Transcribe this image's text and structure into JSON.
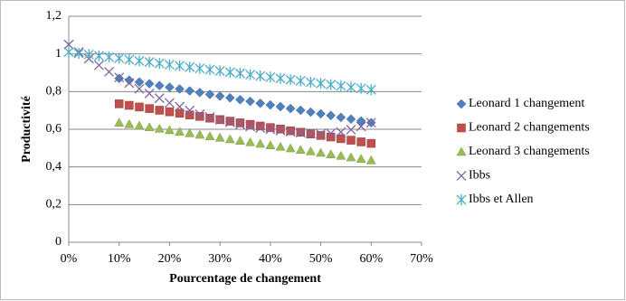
{
  "chart_data": {
    "type": "scatter",
    "y_label": "Productivité",
    "x_label": "Pourcentage de changement",
    "x": [
      0,
      0.02,
      0.04,
      0.06,
      0.08,
      0.1,
      0.12,
      0.14,
      0.16,
      0.18,
      0.2,
      0.22,
      0.24,
      0.26,
      0.28,
      0.3,
      0.32,
      0.34,
      0.36,
      0.38,
      0.4,
      0.42,
      0.44,
      0.46,
      0.48,
      0.5,
      0.52,
      0.54,
      0.56,
      0.58,
      0.6
    ],
    "xlim": [
      0,
      0.7
    ],
    "xticks": [
      {
        "value": 0,
        "label": "0%"
      },
      {
        "value": 0.1,
        "label": "10%"
      },
      {
        "value": 0.2,
        "label": "20%"
      },
      {
        "value": 0.3,
        "label": "30%"
      },
      {
        "value": 0.4,
        "label": "40%"
      },
      {
        "value": 0.5,
        "label": "50%"
      },
      {
        "value": 0.6,
        "label": "60%"
      },
      {
        "value": 0.7,
        "label": "70%"
      }
    ],
    "ylim": [
      0,
      1.2
    ],
    "yticks": [
      0,
      {
        "value": 0.2,
        "label": "0,2"
      },
      {
        "value": 0.4,
        "label": "0,4"
      },
      {
        "value": 0.6,
        "label": "0,6"
      },
      {
        "value": 0.8,
        "label": "0,8"
      },
      1,
      {
        "value": 1.2,
        "label": "1,2"
      }
    ],
    "grid": true,
    "legend": "right",
    "series": [
      {
        "name": "Leonard 1 changement",
        "color": "#4f81bd",
        "marker": "diamond",
        "values": [
          null,
          null,
          null,
          null,
          null,
          0.87,
          0.861,
          0.851,
          0.842,
          0.832,
          0.823,
          0.814,
          0.804,
          0.795,
          0.785,
          0.776,
          0.767,
          0.757,
          0.748,
          0.738,
          0.729,
          0.72,
          0.71,
          0.701,
          0.691,
          0.682,
          0.673,
          0.663,
          0.654,
          0.644,
          0.635
        ]
      },
      {
        "name": "Leonard 2 changements",
        "color": "#c0504d",
        "marker": "square",
        "values": [
          null,
          null,
          null,
          null,
          null,
          0.735,
          0.727,
          0.718,
          0.71,
          0.701,
          0.693,
          0.685,
          0.676,
          0.668,
          0.659,
          0.651,
          0.643,
          0.634,
          0.626,
          0.617,
          0.609,
          0.601,
          0.592,
          0.584,
          0.575,
          0.567,
          0.559,
          0.55,
          0.542,
          0.533,
          0.525
        ]
      },
      {
        "name": "Leonard 3 changements",
        "color": "#9bbb59",
        "marker": "triangle",
        "values": [
          null,
          null,
          null,
          null,
          null,
          0.635,
          0.627,
          0.619,
          0.611,
          0.603,
          0.595,
          0.587,
          0.579,
          0.571,
          0.563,
          0.555,
          0.547,
          0.539,
          0.531,
          0.523,
          0.515,
          0.507,
          0.499,
          0.491,
          0.483,
          0.475,
          0.467,
          0.459,
          0.451,
          0.443,
          0.435
        ]
      },
      {
        "name": "Ibbs",
        "color": "#8064a2",
        "marker": "x",
        "values": [
          1.05,
          1.01,
          0.975,
          0.94,
          0.905,
          0.875,
          0.845,
          0.815,
          0.79,
          0.765,
          0.74,
          0.72,
          0.7,
          0.68,
          0.665,
          0.65,
          0.637,
          0.625,
          0.615,
          0.607,
          0.6,
          0.593,
          0.587,
          0.582,
          0.578,
          0.575,
          0.578,
          0.585,
          0.598,
          0.615,
          0.635
        ]
      },
      {
        "name": "Ibbs et Allen",
        "color": "#4bacc6",
        "marker": "star",
        "values": [
          1.01,
          1.003,
          0.997,
          0.99,
          0.983,
          0.977,
          0.97,
          0.963,
          0.957,
          0.95,
          0.943,
          0.937,
          0.93,
          0.923,
          0.917,
          0.91,
          0.903,
          0.897,
          0.89,
          0.883,
          0.877,
          0.87,
          0.863,
          0.857,
          0.85,
          0.843,
          0.837,
          0.83,
          0.823,
          0.817,
          0.81
        ]
      }
    ]
  }
}
